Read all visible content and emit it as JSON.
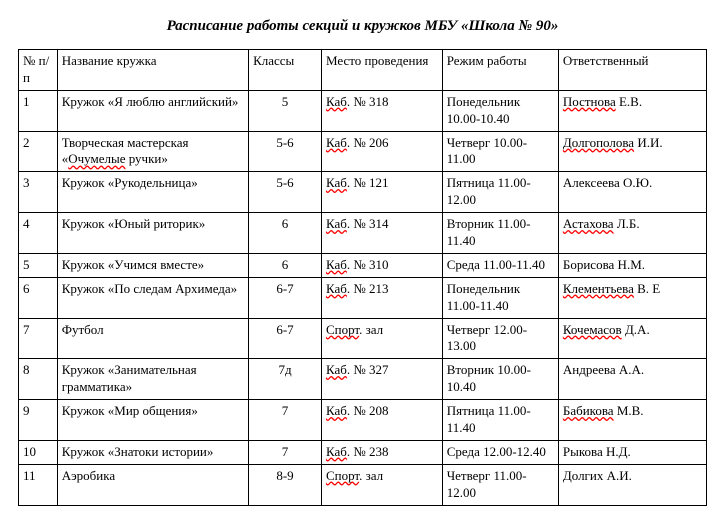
{
  "title": "Расписание работы секций и кружков МБУ «Школа № 90»",
  "headers": {
    "num": "№ п/п",
    "name": "Название кружка",
    "classes": "Классы",
    "place": "Место проведения",
    "schedule": "Режим работы",
    "responsible": "Ответственный"
  },
  "rows": [
    {
      "num": "1",
      "name": "Кружок «Я люблю английский»",
      "classes": "5",
      "place_parts": [
        "Каб",
        ".  № 318"
      ],
      "schedule": "Понедельник 10.00-10.40",
      "responsible_parts": [
        "Постнова",
        " Е.В."
      ]
    },
    {
      "num": "2",
      "name_full": "Творческая мастерская «",
      "name_sp": "Очумелые",
      "name_tail": " ручки»",
      "classes": "5-6",
      "place_parts": [
        "Каб",
        ".  № 206"
      ],
      "schedule": "Четверг 10.00-11.00",
      "responsible_parts": [
        "Долгополова",
        " И.И."
      ]
    },
    {
      "num": "3",
      "name": "Кружок «Рукодельница»",
      "classes": "5-6",
      "place_parts": [
        "Каб",
        ".  № 121"
      ],
      "schedule": "Пятница 11.00-12.00",
      "responsible": "Алексеева О.Ю."
    },
    {
      "num": "4",
      "name": "Кружок «Юный риторик»",
      "classes": "6",
      "place_parts": [
        "Каб",
        ".  № 314"
      ],
      "schedule": "Вторник 11.00-11.40",
      "responsible_parts": [
        "Астахова",
        " Л.Б."
      ]
    },
    {
      "num": "5",
      "name": "Кружок «Учимся вместе»",
      "classes": "6",
      "place_parts": [
        "Каб",
        ".  № 310"
      ],
      "schedule": "Среда 11.00-11.40",
      "responsible": "Борисова Н.М."
    },
    {
      "num": "6",
      "name": "Кружок «По следам Архимеда»",
      "classes": "6-7",
      "place_parts": [
        "Каб",
        ". № 213"
      ],
      "schedule": "Понедельник 11.00-11.40",
      "responsible_parts": [
        "Клементьева",
        " В. Е"
      ]
    },
    {
      "num": "7",
      "name": "Футбол",
      "classes": "6-7",
      "place_parts": [
        "Спорт",
        ". зал"
      ],
      "schedule": "Четверг 12.00-13.00",
      "responsible_parts": [
        "Кочемасов",
        " Д.А."
      ]
    },
    {
      "num": "8",
      "name": "Кружок «Занимательная грамматика»",
      "classes": "7д",
      "place_parts": [
        "Каб",
        ". № 327"
      ],
      "schedule": "Вторник 10.00-10.40",
      "responsible": "Андреева А.А."
    },
    {
      "num": "9",
      "name": "Кружок «Мир общения»",
      "classes": "7",
      "place_parts": [
        "Каб",
        ". № 208"
      ],
      "schedule": "Пятница 11.00-11.40",
      "responsible_parts": [
        "Бабикова",
        " М.В."
      ]
    },
    {
      "num": "10",
      "name": "Кружок «Знатоки истории»",
      "classes": "7",
      "place_parts": [
        "Каб",
        ". № 238"
      ],
      "schedule": "Среда 12.00-12.40",
      "responsible": "Рыкова Н.Д."
    },
    {
      "num": "11",
      "name": "Аэробика",
      "classes": "8-9",
      "place_parts": [
        "Спорт",
        ". зал"
      ],
      "schedule": "Четверг 11.00-12.00",
      "responsible": "Долгих А.И."
    }
  ]
}
